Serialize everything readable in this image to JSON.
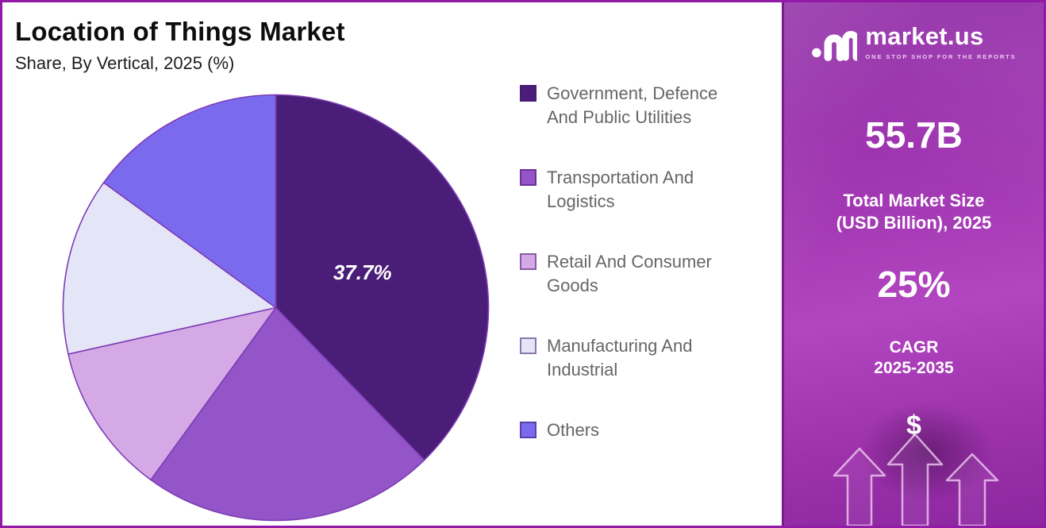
{
  "header": {
    "title": "Location of Things Market",
    "subtitle": "Share, By Vertical, 2025 (%)"
  },
  "chart_data": {
    "type": "pie",
    "title": "Location of Things Market Share, By Vertical, 2025 (%)",
    "labels": [
      "Government, Defence And Public Utilities",
      "Transportation And Logistics",
      "Retail And Consumer Goods",
      "Manufacturing And Industrial",
      "Others"
    ],
    "values": [
      37.7,
      22.3,
      11.5,
      13.5,
      15.0
    ],
    "colors": [
      "#4A1E78",
      "#9455C8",
      "#D5A9E6",
      "#E4E6F7",
      "#7A6BEE"
    ],
    "slice_border_color": "#7D3CB5",
    "data_label": {
      "slice": "Government, Defence And Public Utilities",
      "text": "37.7%"
    },
    "start_angle": "top",
    "direction": "clockwise",
    "legend_position": "right"
  },
  "sidebar": {
    "logo_text": "market.us",
    "logo_tagline": "ONE STOP SHOP FOR THE REPORTS",
    "market_size_value": "55.7B",
    "market_size_label_line1": "Total Market Size",
    "market_size_label_line2": "(USD Billion), 2025",
    "cagr_value": "25%",
    "cagr_label_line1": "CAGR",
    "cagr_label_line2": "2025-2035",
    "dollar_symbol": "$",
    "accent": {
      "gradient_top": "#8E28A4",
      "gradient_bottom": "#8C27A0",
      "frame_border": "#921AA6"
    }
  }
}
